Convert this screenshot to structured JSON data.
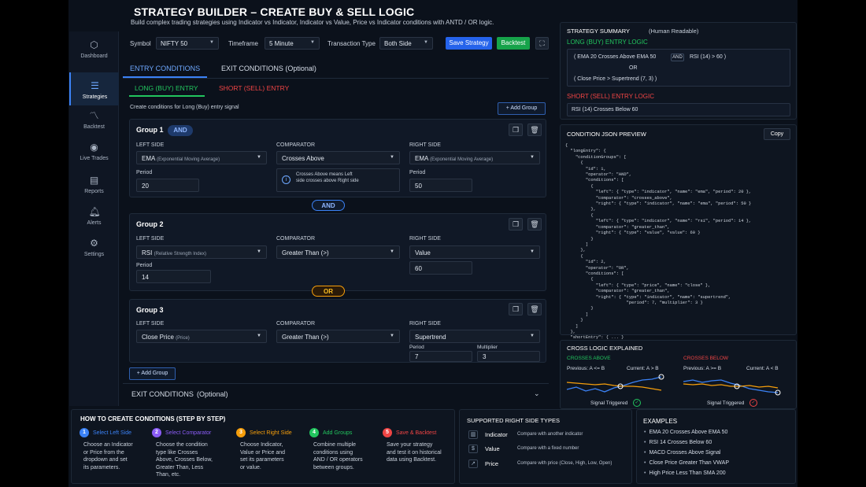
{
  "header": {
    "title": "STRATEGY BUILDER – CREATE BUY & SELL LOGIC",
    "subtitle": "Build complex trading strategies using Indicator vs Indicator, Indicator vs Value, Price vs Indicator conditions with ANTD / OR logic."
  },
  "sidebar": {
    "items": [
      {
        "label": "Dashboard",
        "icon": "cube-icon"
      },
      {
        "label": "Strategies",
        "icon": "sliders-icon"
      },
      {
        "label": "Backtest",
        "icon": "trend-icon"
      },
      {
        "label": "Live Trades",
        "icon": "signal-icon"
      },
      {
        "label": "Reports",
        "icon": "document-icon"
      },
      {
        "label": "Alerts",
        "icon": "bell-icon"
      },
      {
        "label": "Settings",
        "icon": "gear-icon"
      }
    ]
  },
  "toolbar": {
    "symbol_label": "Symbol",
    "symbol_value": "NIFTY 50",
    "timeframe_label": "Timeframe",
    "timeframe_value": "5 Minute",
    "transaction_label": "Transaction Type",
    "transaction_value": "Both Side",
    "save_label": "Save Strategy",
    "backtest_label": "Backtest"
  },
  "tabs": {
    "entry": "ENTRY CONDITIONS",
    "exit": "EXIT CONDITIONS  (Optional)"
  },
  "subtabs": {
    "long": "LONG (BUY) ENTRY",
    "short": "SHORT (SELL) ENTRY"
  },
  "builder": {
    "hint": "Create conditions for Long (Buy) entry signal",
    "add_group": "+ Add Group",
    "left_side": "LEFT SIDE",
    "comparator": "COMPARATOR",
    "right_side": "RIGHT SIDE",
    "period": "Period",
    "multiplier": "Multiplier"
  },
  "groups": [
    {
      "title": "Group 1",
      "badge": "AND",
      "left": "EMA",
      "left_sub": "(Exponential Moving Average)",
      "left_period": "20",
      "comp": "Crosses Above",
      "info": "Crosses Above means Left side crosses above Right side",
      "right": "EMA",
      "right_sub": "(Exponential Moving Average)",
      "right_period": "50"
    },
    {
      "title": "Group 2",
      "left": "RSI",
      "left_sub": "(Relative Strength Index)",
      "left_period": "14",
      "comp": "Greater Than (>)",
      "right": "Value",
      "right_value": "60"
    },
    {
      "title": "Group 3",
      "left": "Close Price",
      "left_sub": "(Price)",
      "comp": "Greater Than (>)",
      "right": "Supertrend",
      "right_period": "7",
      "right_mult": "3"
    }
  ],
  "connectors": {
    "and": "AND",
    "or": "OR"
  },
  "add_group_bottom": "+ Add Group",
  "exit_collapse": {
    "label": "EXIT CONDITIONS",
    "optional": "(Optional)"
  },
  "summary": {
    "title": "STRATEGY SUMMARY",
    "title_sub": "(Human Readable)",
    "long_title": "LONG (BUY) ENTRY LOGIC",
    "long_line1a": "( EMA 20 Crosses Above EMA 50",
    "long_and": "AND",
    "long_line1b": "RSI (14) > 60 )",
    "long_or": "OR",
    "long_line2": "( Close Price > Supertrend (7, 3) )",
    "short_title": "SHORT (SELL) ENTRY LOGIC",
    "short_line": "RSI (14) Crosses Below 60"
  },
  "json_preview": {
    "title": "CONDITION JSON PREVIEW",
    "copy": "Copy",
    "code": "{\n  \"longEntry\": {\n    \"conditionGroups\": [\n      {\n        \"id\": 1,\n        \"operator\": \"AND\",\n        \"conditions\": [\n          {\n            \"left\": { \"type\": \"indicator\", \"name\": \"ema\", \"period\": 20 },\n            \"comparator\": \"crosses_above\",\n            \"right\": { \"type\": \"indicator\", \"name\": \"ema\", \"period\": 50 }\n          },\n          {\n            \"left\": { \"type\": \"indicator\", \"name\": \"rsi\", \"period\": 14 },\n            \"comparator\": \"greater_than\",\n            \"right\": { \"type\": \"value\", \"value\": 60 }\n          }\n        ]\n      },\n      {\n        \"id\": 2,\n        \"operator\": \"OR\",\n        \"conditions\": [\n          {\n            \"left\": { \"type\": \"price\", \"name\": \"close\" },\n            \"comparator\": \"greater_than\",\n            \"right\": { \"type\": \"indicator\", \"name\": \"supertrend\",\n                        \"period\": 7, \"multiplier\": 3 }\n          }\n        ]\n      }\n    ]\n  },\n  \"shortEntry\": { ... }\n}"
  },
  "cross": {
    "title": "CROSS LOGIC EXPLAINED",
    "above": "CROSSES ABOVE",
    "below": "CROSSES BELOW",
    "above_prev": "Previous: A <= B",
    "above_cur": "Current: A > B",
    "below_prev": "Previous: A >= B",
    "below_cur": "Current: A < B",
    "signal": "Signal Triggered"
  },
  "howto": {
    "title": "HOW TO CREATE CONDITIONS (STEP BY STEP)",
    "steps": [
      {
        "n": "1",
        "t": "Select Left Side",
        "d": [
          "Choose an Indicator",
          "or Price from the",
          "dropdown and set",
          "its parameters."
        ],
        "c": "#3b82f6"
      },
      {
        "n": "2",
        "t": "Select Comparator",
        "d": [
          "Choose the condition",
          "type like Crosses",
          "Above, Crosses Below,",
          "Greater Than, Less",
          "Than, etc."
        ],
        "c": "#8b5cf6"
      },
      {
        "n": "3",
        "t": "Select Right Side",
        "d": [
          "Choose Indicator,",
          "Value or Price and",
          "set its parameters",
          "or value."
        ],
        "c": "#f59e0b"
      },
      {
        "n": "4",
        "t": "Add Groups",
        "d": [
          "Combine multiple",
          "conditions using",
          "AND / OR operators",
          "between groups."
        ],
        "c": "#22c55e"
      },
      {
        "n": "5",
        "t": "Save & Backtest",
        "d": [
          "Save your strategy",
          "and test it on historical",
          "data using Backtest."
        ],
        "c": "#ef4444"
      }
    ]
  },
  "types": {
    "title": "SUPPORTED RIGHT SIDE TYPES",
    "items": [
      {
        "name": "Indicator",
        "desc": "Compare with another indicator"
      },
      {
        "name": "Value",
        "desc": "Compare with a fixed number"
      },
      {
        "name": "Price",
        "desc": "Compare with price (Close, High, Low, Open)"
      }
    ]
  },
  "examples": {
    "title": "EXAMPLES",
    "items": [
      "EMA 20 Crosses Above EMA 50",
      "RSI 14 Crosses Below 60",
      "MACD Crosses Above Signal",
      "Close Price Greater Than VWAP",
      "High Price Less Than SMA 200"
    ]
  },
  "colors": {
    "blue": "#3b82f6",
    "green": "#22c55e",
    "red": "#ef4444",
    "orange": "#f59e0b",
    "bg": "#0b111b"
  }
}
